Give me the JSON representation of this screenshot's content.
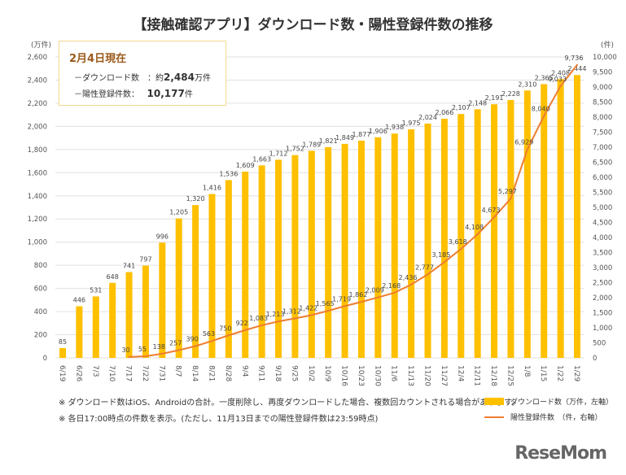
{
  "title": "【接触確認アプリ】ダウンロード数・陽性登録件数の推移",
  "box": {
    "heading": "2月4日現在",
    "dl_label": "－ダウンロード数　：約",
    "dl_value": "2,484",
    "dl_unit": "万件",
    "pos_label": "－陽性登録件数：",
    "pos_value": "10,177",
    "pos_unit": "件"
  },
  "notes": [
    "※ ダウンロード数はiOS、Androidの合計。一度削除し、再度ダウンロードした場合、複数回カウントされる場合があります。",
    "※ 各日17:00時点の件数を表示。(ただし、11月13日までの陽性登録件数は23:59時点)"
  ],
  "logo": "ReseMom",
  "chart_data": {
    "type": "bar+line",
    "categories": [
      "6/19",
      "6/26",
      "7/3",
      "7/10",
      "7/17",
      "7/22",
      "7/31",
      "8/7",
      "8/14",
      "8/21",
      "8/28",
      "9/4",
      "9/11",
      "9/18",
      "9/25",
      "10/2",
      "10/9",
      "10/16",
      "10/23",
      "10/30",
      "11/6",
      "11/13",
      "11/20",
      "11/27",
      "12/4",
      "12/11",
      "12/18",
      "12/25",
      "1/8",
      "1/15",
      "1/22",
      "1/29"
    ],
    "left_axis": {
      "unit": "(万件)",
      "range": [
        0,
        2600
      ],
      "ticks": [
        0,
        200,
        400,
        600,
        800,
        1000,
        1200,
        1400,
        1600,
        1800,
        2000,
        2200,
        2400,
        2600
      ]
    },
    "right_axis": {
      "unit": "(件)",
      "range": [
        0,
        10000
      ],
      "ticks": [
        0,
        500,
        1000,
        1500,
        2000,
        2500,
        3000,
        3500,
        4000,
        4500,
        5000,
        5500,
        6000,
        6500,
        7000,
        7500,
        8000,
        8500,
        9000,
        9500,
        10000
      ]
    },
    "series": [
      {
        "name": "ダウンロード数（万件，左軸）",
        "type": "bar",
        "axis": "left",
        "color": "#FFC000",
        "values": [
          85,
          446,
          531,
          648,
          741,
          797,
          996,
          1205,
          1320,
          1416,
          1536,
          1609,
          1663,
          1712,
          1752,
          1789,
          1821,
          1849,
          1877,
          1906,
          1938,
          1975,
          2024,
          2066,
          2107,
          2148,
          2191,
          2228,
          2310,
          2365,
          2408,
          2444
        ]
      },
      {
        "name": "陽性登録件数　（件，右軸）",
        "type": "line",
        "axis": "right",
        "color": "#ED7D31",
        "values": [
          null,
          null,
          null,
          null,
          30,
          55,
          138,
          257,
          390,
          563,
          750,
          922,
          1083,
          1213,
          1312,
          1422,
          1565,
          1719,
          1862,
          2009,
          2168,
          2436,
          2777,
          3185,
          3618,
          4108,
          4673,
          5297,
          6929,
          8040,
          9033,
          9736
        ]
      }
    ],
    "grid": true,
    "legend": "bottom-right"
  }
}
